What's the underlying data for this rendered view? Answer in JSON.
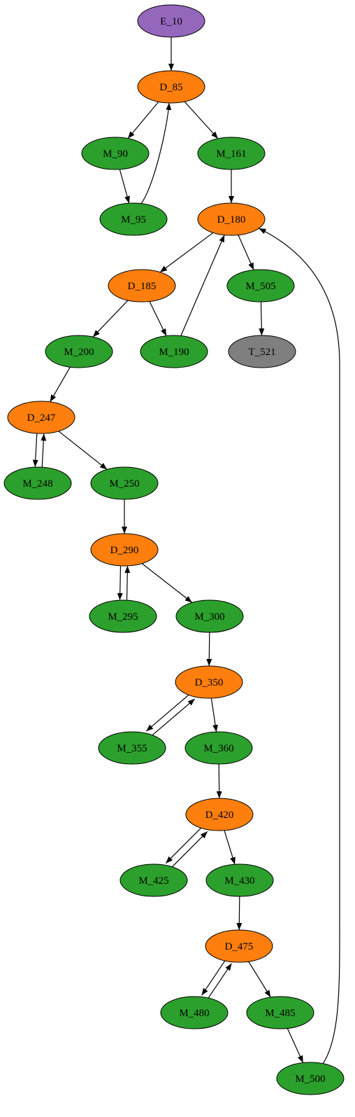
{
  "colors": {
    "entry": "#9467bd",
    "decision": "#ff7f0e",
    "module": "#2ca02c",
    "terminal": "#7f7f7f",
    "stroke": "#000000"
  },
  "nodes": [
    {
      "id": "E_10",
      "label": "E_10",
      "kind": "entry"
    },
    {
      "id": "D_85",
      "label": "D_85",
      "kind": "decision"
    },
    {
      "id": "M_90",
      "label": "M_90",
      "kind": "module"
    },
    {
      "id": "M_161",
      "label": "M_161",
      "kind": "module"
    },
    {
      "id": "M_95",
      "label": "M_95",
      "kind": "module"
    },
    {
      "id": "D_180",
      "label": "D_180",
      "kind": "decision"
    },
    {
      "id": "D_185",
      "label": "D_185",
      "kind": "decision"
    },
    {
      "id": "M_505",
      "label": "M_505",
      "kind": "module"
    },
    {
      "id": "M_200",
      "label": "M_200",
      "kind": "module"
    },
    {
      "id": "M_190",
      "label": "M_190",
      "kind": "module"
    },
    {
      "id": "T_521",
      "label": "T_521",
      "kind": "terminal"
    },
    {
      "id": "D_247",
      "label": "D_247",
      "kind": "decision"
    },
    {
      "id": "M_248",
      "label": "M_248",
      "kind": "module"
    },
    {
      "id": "M_250",
      "label": "M_250",
      "kind": "module"
    },
    {
      "id": "D_290",
      "label": "D_290",
      "kind": "decision"
    },
    {
      "id": "M_295",
      "label": "M_295",
      "kind": "module"
    },
    {
      "id": "M_300",
      "label": "M_300",
      "kind": "module"
    },
    {
      "id": "D_350",
      "label": "D_350",
      "kind": "decision"
    },
    {
      "id": "M_355",
      "label": "M_355",
      "kind": "module"
    },
    {
      "id": "M_360",
      "label": "M_360",
      "kind": "module"
    },
    {
      "id": "D_420",
      "label": "D_420",
      "kind": "decision"
    },
    {
      "id": "M_425",
      "label": "M_425",
      "kind": "module"
    },
    {
      "id": "M_430",
      "label": "M_430",
      "kind": "module"
    },
    {
      "id": "D_475",
      "label": "D_475",
      "kind": "decision"
    },
    {
      "id": "M_480",
      "label": "M_480",
      "kind": "module"
    },
    {
      "id": "M_485",
      "label": "M_485",
      "kind": "module"
    },
    {
      "id": "M_500",
      "label": "M_500",
      "kind": "module"
    }
  ],
  "edges": [
    {
      "from": "E_10",
      "to": "D_85"
    },
    {
      "from": "D_85",
      "to": "M_90"
    },
    {
      "from": "D_85",
      "to": "M_161"
    },
    {
      "from": "M_90",
      "to": "M_95"
    },
    {
      "from": "M_95",
      "to": "D_85"
    },
    {
      "from": "M_161",
      "to": "D_180"
    },
    {
      "from": "D_180",
      "to": "D_185"
    },
    {
      "from": "D_180",
      "to": "M_505"
    },
    {
      "from": "D_185",
      "to": "M_200"
    },
    {
      "from": "D_185",
      "to": "M_190"
    },
    {
      "from": "M_190",
      "to": "D_180"
    },
    {
      "from": "M_505",
      "to": "T_521"
    },
    {
      "from": "M_200",
      "to": "D_247"
    },
    {
      "from": "D_247",
      "to": "M_248"
    },
    {
      "from": "M_248",
      "to": "D_247"
    },
    {
      "from": "D_247",
      "to": "M_250"
    },
    {
      "from": "M_250",
      "to": "D_290"
    },
    {
      "from": "D_290",
      "to": "M_295"
    },
    {
      "from": "M_295",
      "to": "D_290"
    },
    {
      "from": "D_290",
      "to": "M_300"
    },
    {
      "from": "M_300",
      "to": "D_350"
    },
    {
      "from": "D_350",
      "to": "M_355"
    },
    {
      "from": "M_355",
      "to": "D_350"
    },
    {
      "from": "D_350",
      "to": "M_360"
    },
    {
      "from": "M_360",
      "to": "D_420"
    },
    {
      "from": "D_420",
      "to": "M_425"
    },
    {
      "from": "M_425",
      "to": "D_420"
    },
    {
      "from": "D_420",
      "to": "M_430"
    },
    {
      "from": "M_430",
      "to": "D_475"
    },
    {
      "from": "D_475",
      "to": "M_480"
    },
    {
      "from": "M_480",
      "to": "D_475"
    },
    {
      "from": "D_475",
      "to": "M_485"
    },
    {
      "from": "M_485",
      "to": "M_500"
    },
    {
      "from": "M_500",
      "to": "D_180"
    }
  ]
}
